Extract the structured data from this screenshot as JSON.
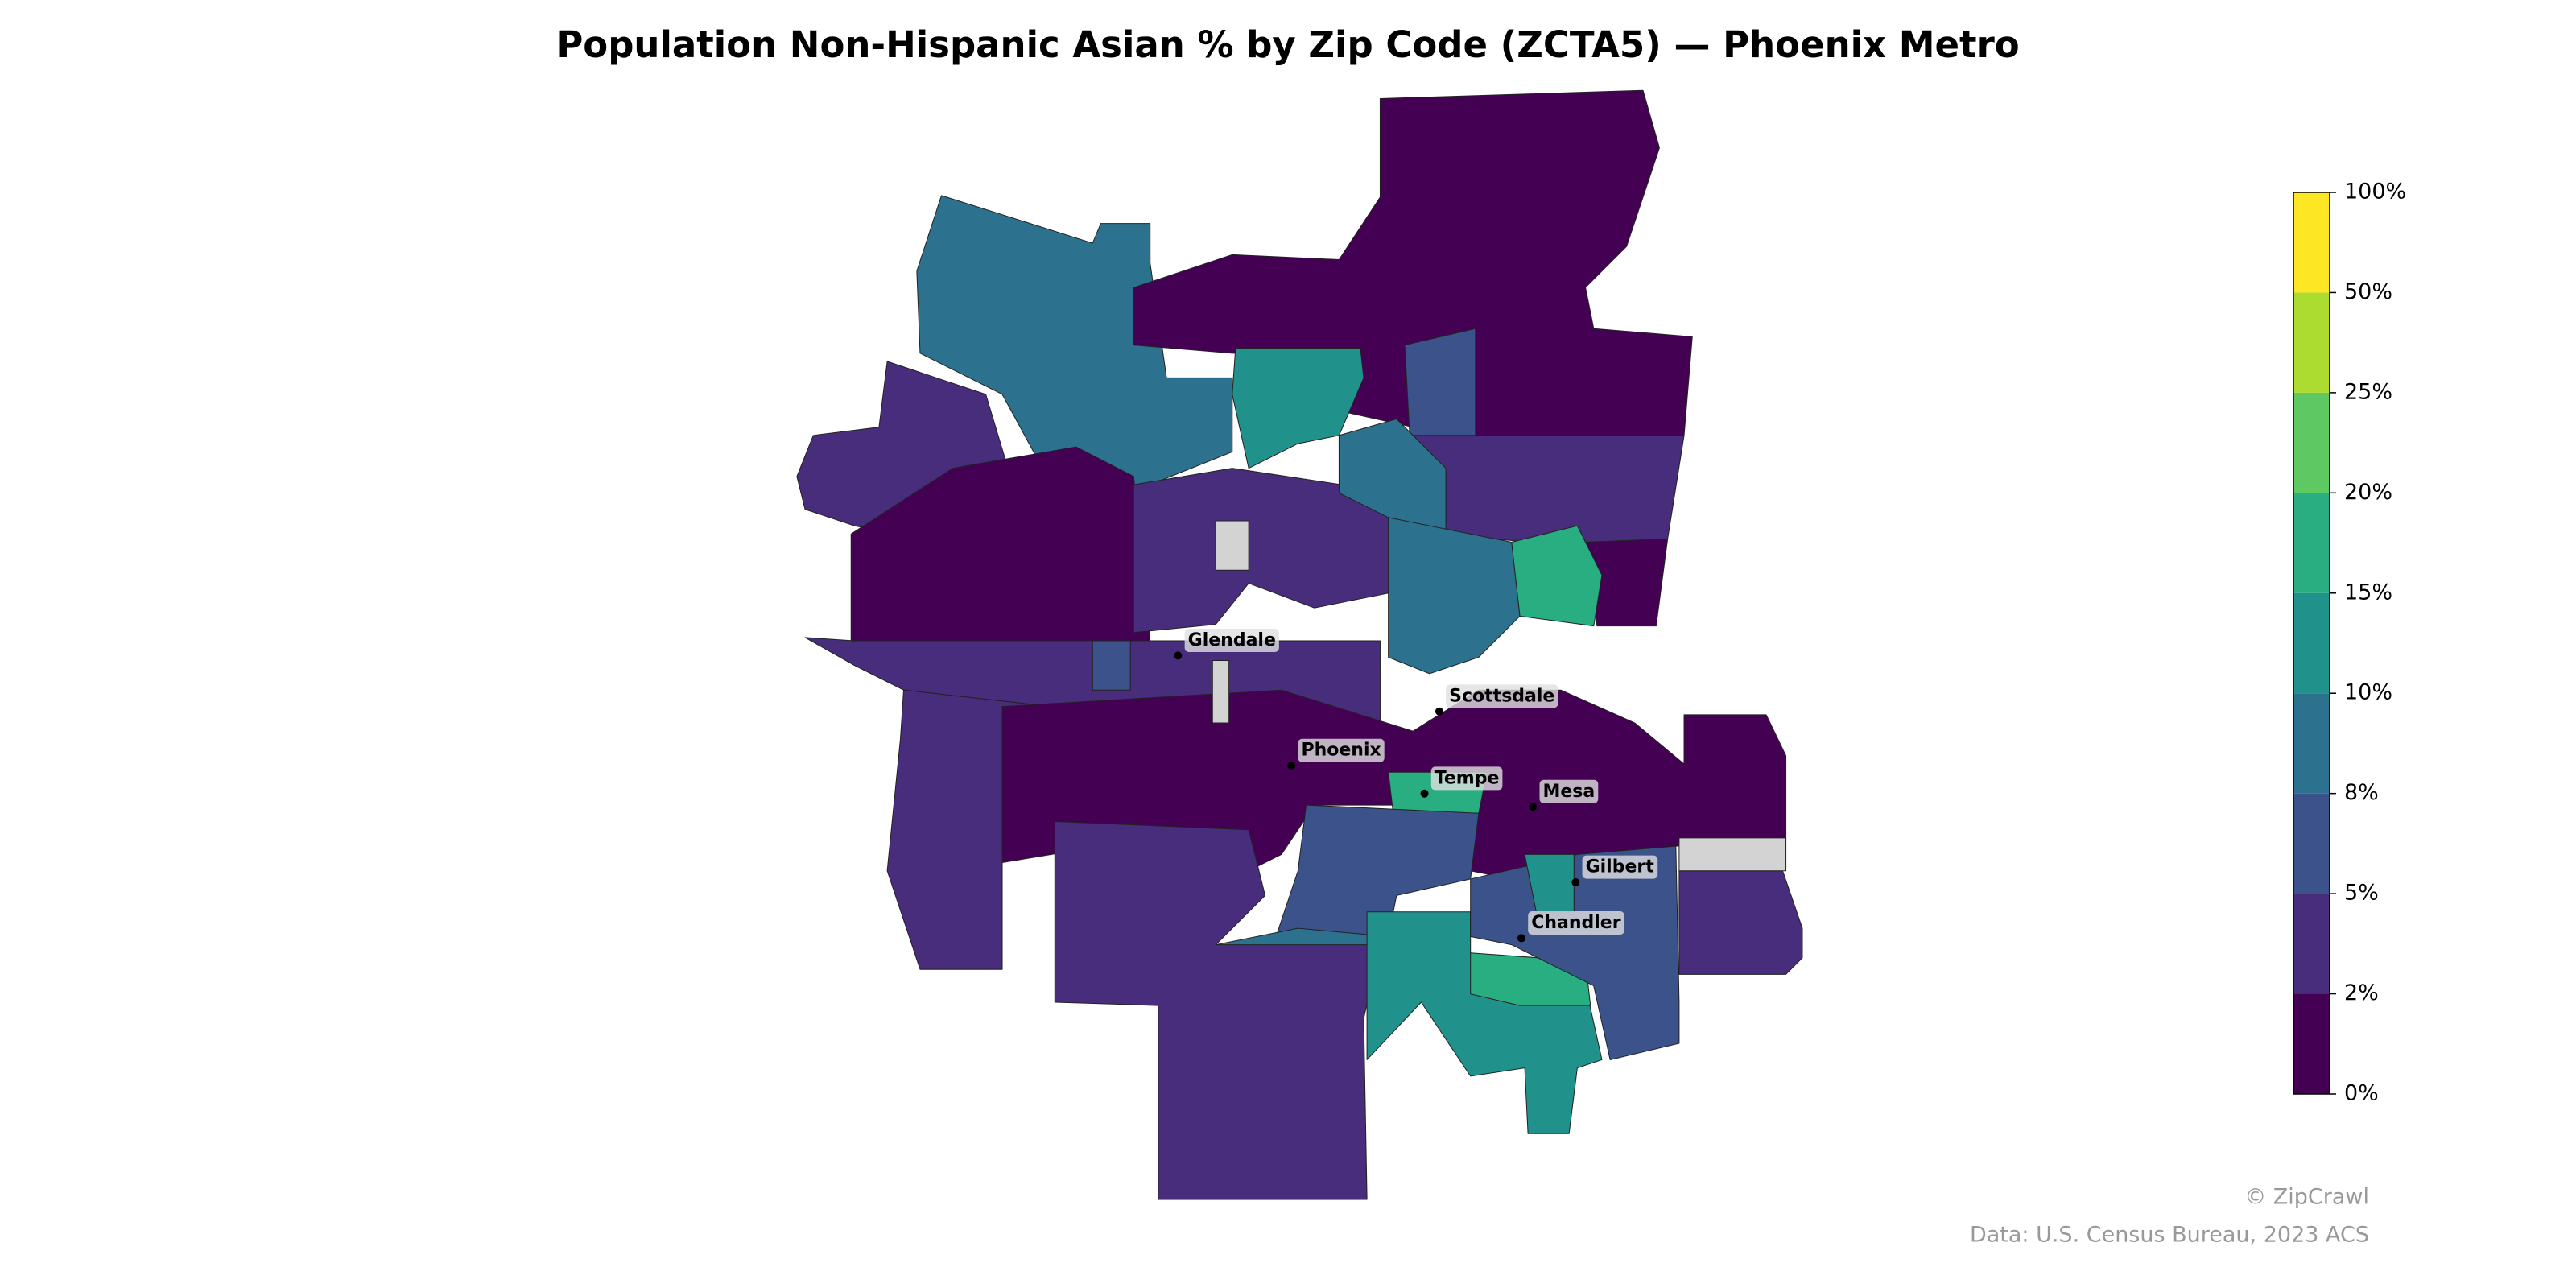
{
  "title": "Population Non-Hispanic Asian % by Zip Code (ZCTA5) — Phoenix Metro",
  "colorbar": {
    "ticks": [
      "0%",
      "2%",
      "5%",
      "8%",
      "10%",
      "15%",
      "20%",
      "25%",
      "50%",
      "100%"
    ],
    "colors": [
      "#440154",
      "#472d7b",
      "#3b528b",
      "#2c728e",
      "#21918c",
      "#28ae80",
      "#5ec962",
      "#addc30",
      "#fde725"
    ]
  },
  "cities": [
    "Glendale",
    "Scottsdale",
    "Phoenix",
    "Tempe",
    "Mesa",
    "Gilbert",
    "Chandler"
  ],
  "credits": {
    "brand": "© ZipCrawl",
    "source": "Data: U.S. Census Bureau, 2023 ACS"
  }
}
